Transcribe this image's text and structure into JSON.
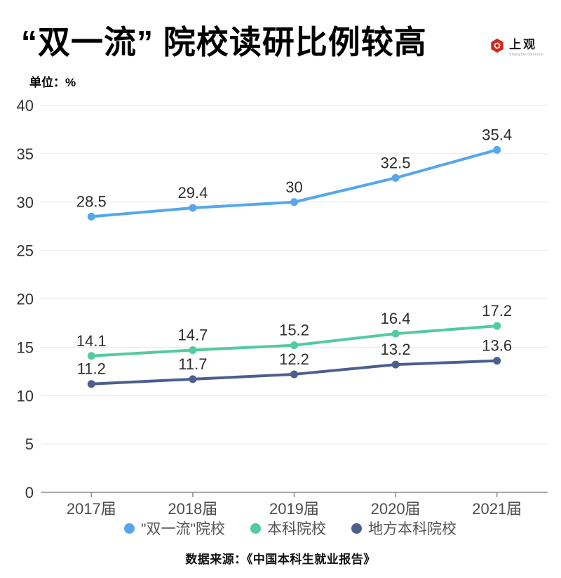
{
  "header": {
    "title": "“双一流” 院校读研比例较高",
    "unit_label": "单位：%",
    "logo": {
      "name": "上观",
      "subtitle": "Shanghai Observer",
      "icon_color": "#d3291d"
    }
  },
  "chart_data": {
    "type": "line",
    "title": "“双一流” 院校读研比例较高",
    "xlabel": "",
    "ylabel": "单位：%",
    "categories": [
      "2017届",
      "2018届",
      "2019届",
      "2020届",
      "2021届"
    ],
    "series": [
      {
        "name": "\"双一流\"院校",
        "values": [
          28.5,
          29.4,
          30,
          32.5,
          35.4
        ],
        "color": "#55a6ec"
      },
      {
        "name": "本科院校",
        "values": [
          14.1,
          14.7,
          15.2,
          16.4,
          17.2
        ],
        "color": "#53cb9e"
      },
      {
        "name": "地方本科院校",
        "values": [
          11.2,
          11.7,
          12.2,
          13.2,
          13.6
        ],
        "color": "#4c5f8d"
      }
    ],
    "ylim": [
      0,
      40
    ],
    "yticks": [
      0,
      5,
      10,
      15,
      20,
      25,
      30,
      35,
      40
    ],
    "grid": true,
    "data_labels": true,
    "legend_position": "bottom"
  },
  "footer": {
    "source": "数据来源：《中国本科生就业报告》"
  },
  "style": {
    "gridline_color": "#e8e8e8",
    "axis_color": "#8c8c8c",
    "ytick_label_color": "#333333",
    "xtick_label_color": "#4d4d4d",
    "data_label_color": "#2d2d2d"
  }
}
